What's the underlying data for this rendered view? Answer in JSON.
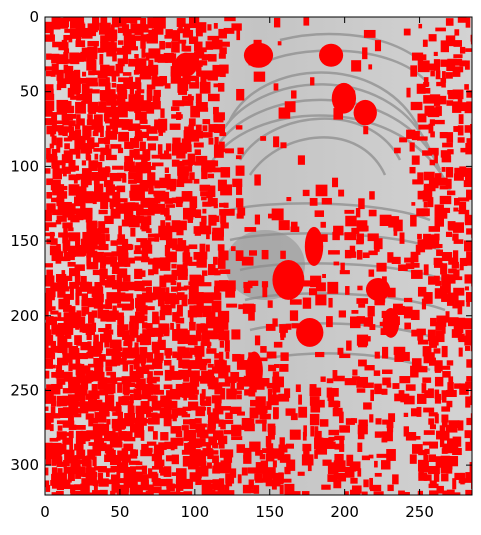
{
  "image": {
    "description_icon": "fingerprint-image-icon",
    "overlay_color": "#ff0000",
    "background_color": "#bdbdbd"
  },
  "axes": {
    "x_ticks": [
      "0",
      "50",
      "100",
      "150",
      "200",
      "250"
    ],
    "x_values": [
      0,
      50,
      100,
      150,
      200,
      250
    ],
    "y_ticks": [
      "0",
      "50",
      "100",
      "150",
      "200",
      "250",
      "300"
    ],
    "y_values": [
      0,
      50,
      100,
      150,
      200,
      250,
      300
    ],
    "x_range": [
      0,
      285
    ],
    "y_range": [
      0,
      320
    ]
  }
}
